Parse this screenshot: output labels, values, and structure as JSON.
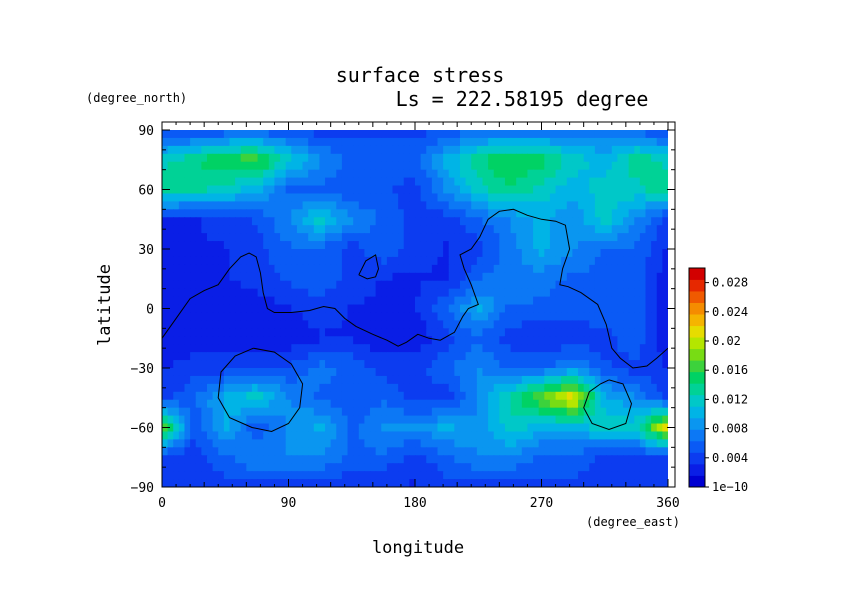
{
  "chart_data": {
    "type": "heatmap",
    "title": "surface stress",
    "subtitle": "Ls = 222.58195 degree",
    "xlabel": "longitude",
    "ylabel": "latitude",
    "x_units": "(degree_east)",
    "y_units": "(degree_north)",
    "xlim": [
      0,
      360
    ],
    "ylim": [
      -90,
      90
    ],
    "x_ticks": [
      0,
      90,
      180,
      270,
      360
    ],
    "x_tick_labels": [
      "0",
      "90",
      "180",
      "270",
      "360"
    ],
    "y_ticks": [
      90,
      60,
      30,
      0,
      -30,
      -60,
      -90
    ],
    "y_tick_labels": [
      "90",
      "60",
      "30",
      "0",
      "−30",
      "−60",
      "−90"
    ],
    "colorbar": {
      "min": 1e-10,
      "max": 0.03,
      "ticks": [
        1e-10,
        0.004,
        0.008,
        0.012,
        0.016,
        0.02,
        0.024,
        0.028
      ],
      "tick_labels": [
        "1e−10",
        "0.004",
        "0.008",
        "0.012",
        "0.016",
        "0.02",
        "0.024",
        "0.028"
      ],
      "colors": [
        "#0000d2",
        "#0a1ee6",
        "#0c3cf0",
        "#0a5af5",
        "#0c78f5",
        "#0a96f0",
        "#00b4e6",
        "#00c8c8",
        "#00d296",
        "#00d264",
        "#3cd23c",
        "#78dc14",
        "#b4e600",
        "#e6dc00",
        "#f5b400",
        "#f58c00",
        "#f05a00",
        "#e62800",
        "#d20000"
      ]
    },
    "grid_x": [
      0,
      22.5,
      45,
      67.5,
      90,
      112.5,
      135,
      157.5,
      180,
      202.5,
      225,
      247.5,
      270,
      292.5,
      315,
      337.5,
      360
    ],
    "grid_y": [
      90,
      75,
      60,
      45,
      30,
      15,
      0,
      -15,
      -30,
      -45,
      -60,
      -75,
      -90
    ],
    "values": [
      [
        0.004,
        0.004,
        0.005,
        0.005,
        0.005,
        0.004,
        0.004,
        0.004,
        0.004,
        0.005,
        0.006,
        0.006,
        0.006,
        0.007,
        0.007,
        0.006,
        0.004
      ],
      [
        0.012,
        0.014,
        0.016,
        0.017,
        0.012,
        0.008,
        0.006,
        0.006,
        0.006,
        0.01,
        0.014,
        0.016,
        0.015,
        0.012,
        0.01,
        0.014,
        0.012
      ],
      [
        0.014,
        0.013,
        0.012,
        0.01,
        0.006,
        0.006,
        0.005,
        0.005,
        0.004,
        0.008,
        0.012,
        0.014,
        0.012,
        0.01,
        0.012,
        0.012,
        0.014
      ],
      [
        0.003,
        0.003,
        0.004,
        0.005,
        0.008,
        0.012,
        0.008,
        0.006,
        0.004,
        0.004,
        0.006,
        0.008,
        0.01,
        0.008,
        0.012,
        0.008,
        0.004
      ],
      [
        0.002,
        0.003,
        0.003,
        0.004,
        0.006,
        0.006,
        0.004,
        0.006,
        0.004,
        0.003,
        0.004,
        0.007,
        0.01,
        0.008,
        0.006,
        0.006,
        0.003
      ],
      [
        0.002,
        0.002,
        0.003,
        0.004,
        0.005,
        0.006,
        0.004,
        0.003,
        0.003,
        0.003,
        0.006,
        0.008,
        0.007,
        0.006,
        0.006,
        0.006,
        0.002
      ],
      [
        0.002,
        0.002,
        0.002,
        0.002,
        0.003,
        0.004,
        0.003,
        0.003,
        0.003,
        0.006,
        0.01,
        0.006,
        0.006,
        0.005,
        0.006,
        0.006,
        0.002
      ],
      [
        0.002,
        0.002,
        0.002,
        0.002,
        0.002,
        0.003,
        0.003,
        0.002,
        0.002,
        0.004,
        0.006,
        0.004,
        0.003,
        0.004,
        0.004,
        0.006,
        0.002
      ],
      [
        0.003,
        0.004,
        0.004,
        0.005,
        0.005,
        0.007,
        0.006,
        0.004,
        0.004,
        0.006,
        0.008,
        0.006,
        0.006,
        0.008,
        0.005,
        0.004,
        0.003
      ],
      [
        0.004,
        0.006,
        0.01,
        0.012,
        0.008,
        0.006,
        0.005,
        0.006,
        0.004,
        0.004,
        0.008,
        0.013,
        0.018,
        0.022,
        0.01,
        0.008,
        0.004
      ],
      [
        0.018,
        0.005,
        0.01,
        0.005,
        0.008,
        0.01,
        0.006,
        0.008,
        0.008,
        0.01,
        0.008,
        0.012,
        0.01,
        0.01,
        0.012,
        0.012,
        0.022
      ],
      [
        0.004,
        0.004,
        0.006,
        0.008,
        0.008,
        0.008,
        0.006,
        0.006,
        0.004,
        0.006,
        0.008,
        0.008,
        0.006,
        0.006,
        0.004,
        0.004,
        0.004
      ],
      [
        0.004,
        0.004,
        0.004,
        0.004,
        0.004,
        0.004,
        0.003,
        0.003,
        0.003,
        0.004,
        0.004,
        0.004,
        0.004,
        0.004,
        0.004,
        0.004,
        0.004
      ]
    ],
    "contours": [
      [
        [
          0,
          -15
        ],
        [
          10,
          -5
        ],
        [
          20,
          5
        ],
        [
          30,
          9
        ],
        [
          40,
          12
        ],
        [
          48,
          20
        ],
        [
          56,
          26
        ],
        [
          62,
          28
        ],
        [
          67,
          26
        ],
        [
          70,
          18
        ],
        [
          72,
          8
        ],
        [
          75,
          0
        ],
        [
          80,
          -2
        ],
        [
          92,
          -2
        ],
        [
          105,
          -1
        ],
        [
          115,
          1
        ],
        [
          123,
          0
        ],
        [
          130,
          -5
        ],
        [
          138,
          -9
        ],
        [
          150,
          -13
        ],
        [
          160,
          -16
        ],
        [
          168,
          -19
        ],
        [
          174,
          -17
        ],
        [
          182,
          -13
        ],
        [
          190,
          -15
        ],
        [
          198,
          -16
        ],
        [
          208,
          -12
        ],
        [
          214,
          -4
        ],
        [
          218,
          0
        ],
        [
          225,
          2
        ],
        [
          220,
          12
        ],
        [
          215,
          20
        ],
        [
          212,
          27
        ],
        [
          220,
          30
        ],
        [
          226,
          36
        ],
        [
          232,
          45
        ],
        [
          240,
          49
        ],
        [
          250,
          50
        ],
        [
          260,
          47
        ],
        [
          270,
          45
        ],
        [
          280,
          44
        ],
        [
          287,
          42
        ],
        [
          290,
          30
        ],
        [
          285,
          20
        ],
        [
          283,
          12
        ],
        [
          289,
          11
        ],
        [
          298,
          8
        ],
        [
          310,
          2
        ],
        [
          316,
          -8
        ],
        [
          320,
          -20
        ],
        [
          326,
          -25
        ],
        [
          335,
          -30
        ],
        [
          345,
          -29
        ],
        [
          352,
          -25
        ],
        [
          360,
          -20
        ]
      ],
      [
        [
          65,
          -20
        ],
        [
          80,
          -22
        ],
        [
          92,
          -28
        ],
        [
          100,
          -38
        ],
        [
          98,
          -50
        ],
        [
          90,
          -58
        ],
        [
          78,
          -62
        ],
        [
          64,
          -60
        ],
        [
          48,
          -55
        ],
        [
          40,
          -45
        ],
        [
          42,
          -32
        ],
        [
          52,
          -24
        ],
        [
          65,
          -20
        ]
      ],
      [
        [
          140,
          17
        ],
        [
          145,
          24
        ],
        [
          152,
          27
        ],
        [
          154,
          20
        ],
        [
          152,
          16
        ],
        [
          146,
          15
        ],
        [
          140,
          17
        ]
      ],
      [
        [
          318,
          -36
        ],
        [
          328,
          -38
        ],
        [
          334,
          -48
        ],
        [
          330,
          -58
        ],
        [
          318,
          -61
        ],
        [
          306,
          -58
        ],
        [
          300,
          -50
        ],
        [
          304,
          -42
        ],
        [
          312,
          -38
        ],
        [
          318,
          -36
        ]
      ]
    ]
  }
}
